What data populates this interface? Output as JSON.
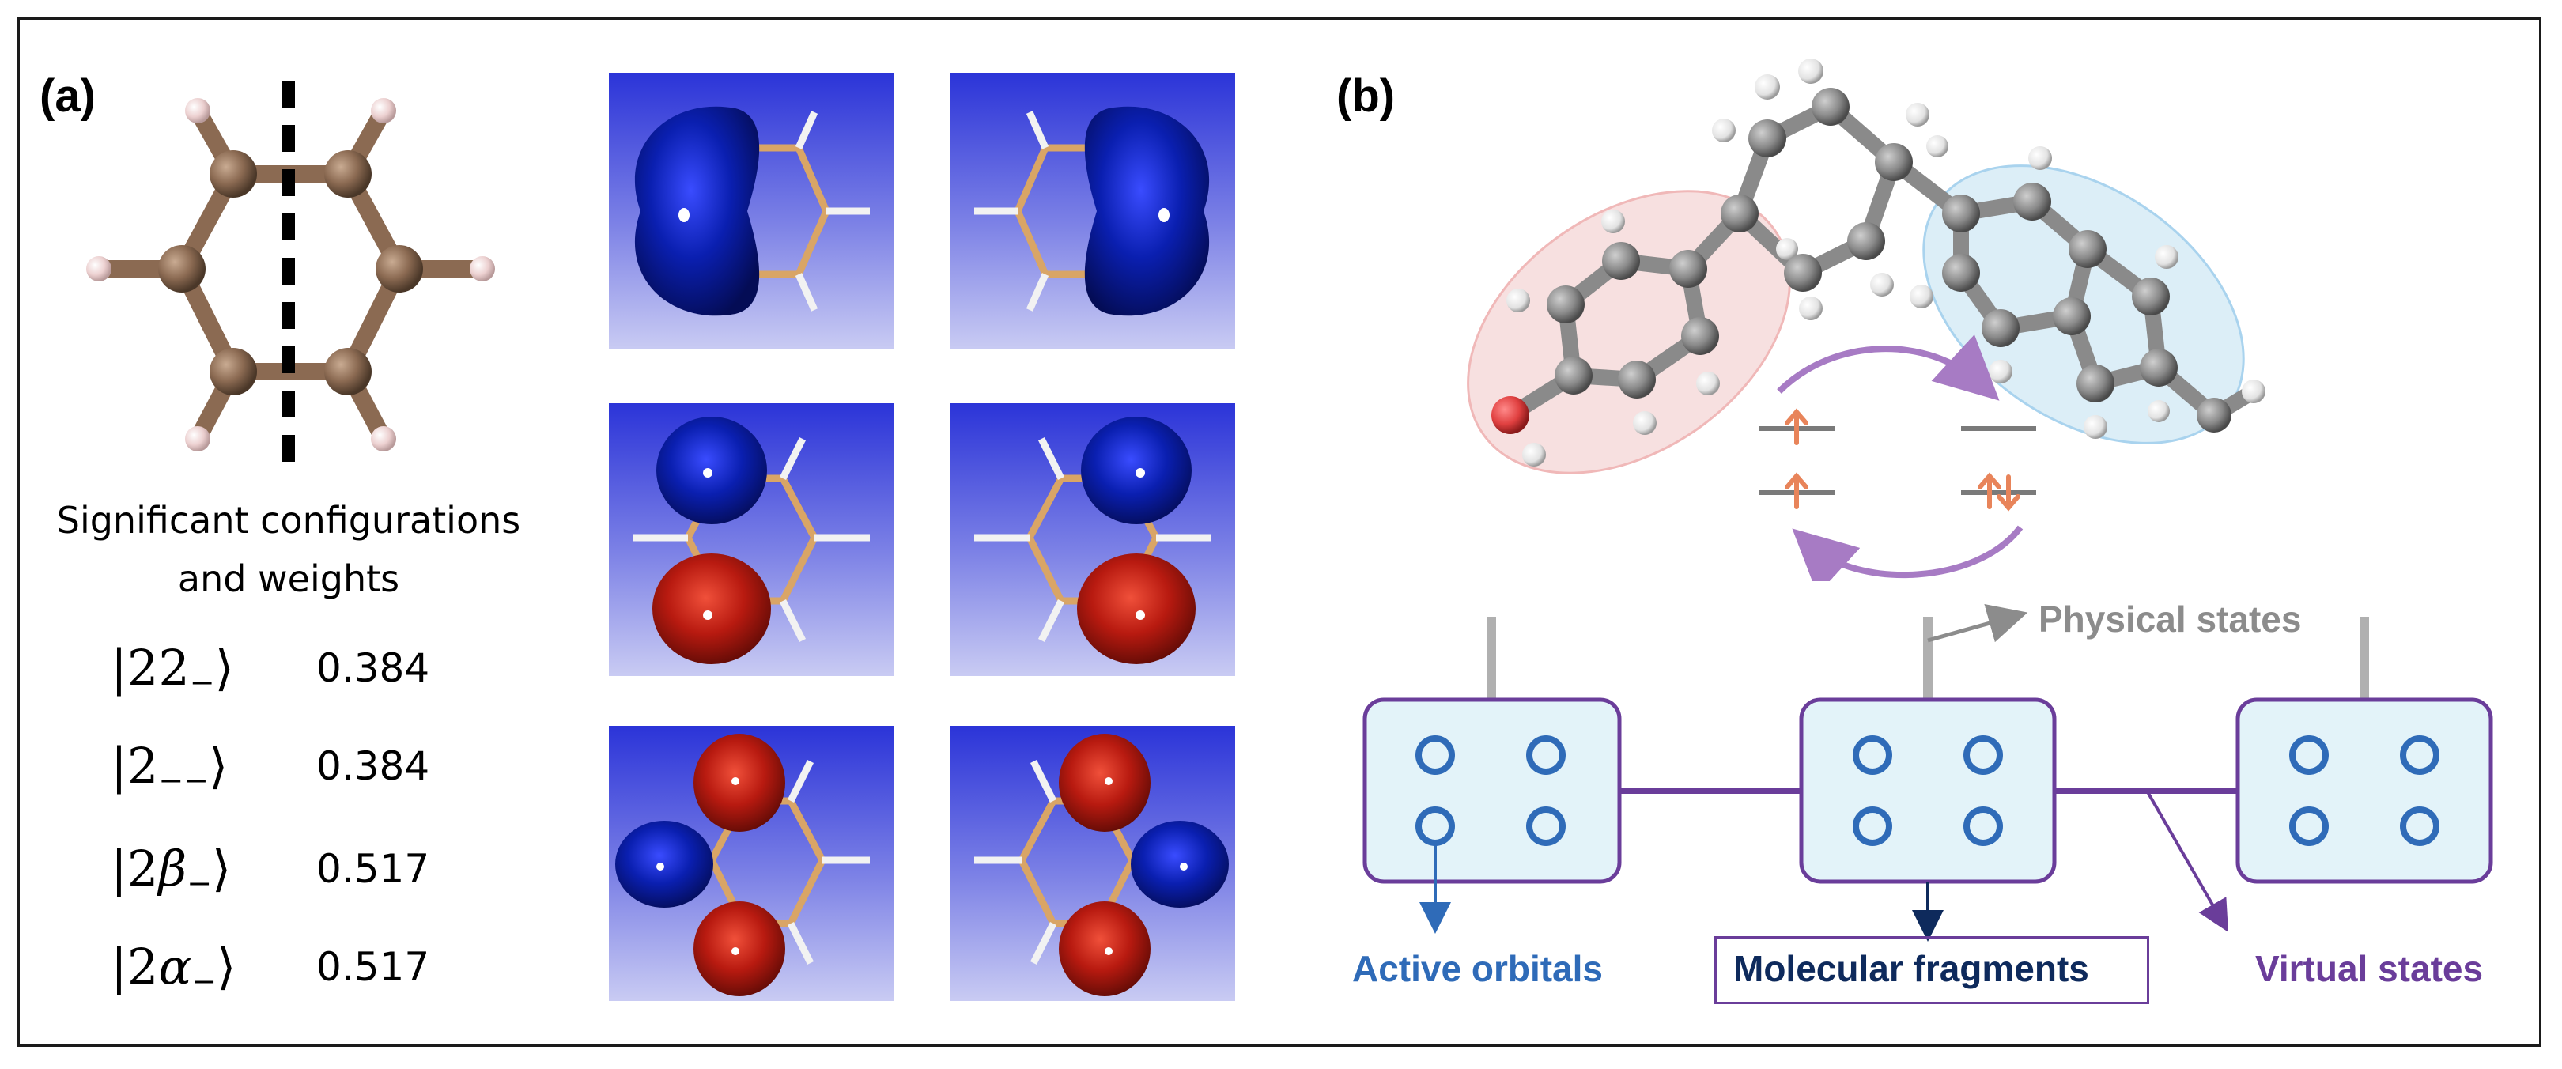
{
  "panel_a": {
    "label": "(a)",
    "caption_line1": "Significant configurations",
    "caption_line2": "and weights",
    "configs": [
      {
        "ket_main": "22",
        "ket_greek": "",
        "ket_sub": "−",
        "weight": "0.384"
      },
      {
        "ket_main": "2",
        "ket_greek": "",
        "ket_sub": "−−",
        "weight": "0.384"
      },
      {
        "ket_main": "2",
        "ket_greek": "β",
        "ket_sub": "−",
        "weight": "0.517"
      },
      {
        "ket_main": "2",
        "ket_greek": "α",
        "ket_sub": "−",
        "weight": "0.517"
      }
    ]
  },
  "panel_b": {
    "label": "(b)",
    "physical_states": "Physical states",
    "active_orbitals": "Active orbitals",
    "molecular_fragments": "Molecular fragments",
    "virtual_states": "Virtual states"
  },
  "colors": {
    "carbon_brown": "#8b6a52",
    "hydrogen_pink": "#e8c8c8",
    "orbital_blue": "#0a1fb0",
    "orbital_red": "#b81a10",
    "active_blue": "#2f6bb8",
    "fragment_navy": "#0e2a5c",
    "virtual_purple": "#6a3d9a",
    "physical_gray": "#8c8c8c",
    "spin_orange": "#e8845a",
    "arrow_purple": "#a77bc4"
  }
}
